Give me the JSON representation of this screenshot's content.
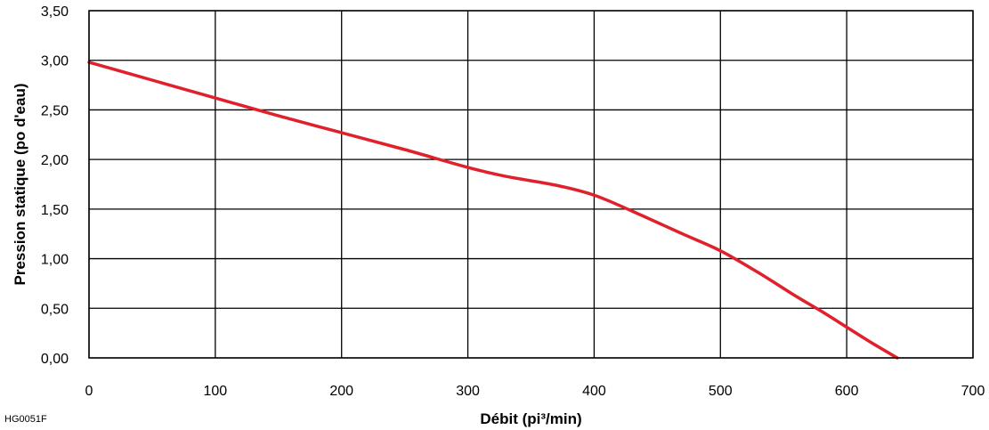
{
  "figure_code": "HG0051F",
  "chart_data": {
    "type": "line",
    "title": "",
    "xlabel": "Débit (pi³/min)",
    "ylabel": "Pression statique (po d'eau)",
    "xlim": [
      0,
      700
    ],
    "ylim": [
      0,
      3.5
    ],
    "x_ticks": [
      0,
      100,
      200,
      300,
      400,
      500,
      600,
      700
    ],
    "x_tick_labels": [
      "0",
      "100",
      "200",
      "300",
      "400",
      "500",
      "600",
      "700"
    ],
    "y_ticks": [
      0,
      0.5,
      1,
      1.5,
      2,
      2.5,
      3,
      3.5
    ],
    "y_tick_labels": [
      "0,00",
      "0,50",
      "1,00",
      "1,50",
      "2,00",
      "2,50",
      "3,00",
      "3,50"
    ],
    "grid": true,
    "series": [
      {
        "color": "#e0202a",
        "x": [
          0,
          50,
          100,
          150,
          200,
          250,
          300,
          330,
          370,
          400,
          430,
          470,
          500,
          530,
          560,
          580,
          600,
          620,
          640
        ],
        "y": [
          2.98,
          2.8,
          2.62,
          2.44,
          2.27,
          2.1,
          1.92,
          1.83,
          1.74,
          1.64,
          1.48,
          1.25,
          1.08,
          0.86,
          0.62,
          0.47,
          0.31,
          0.15,
          0.0
        ]
      }
    ]
  }
}
